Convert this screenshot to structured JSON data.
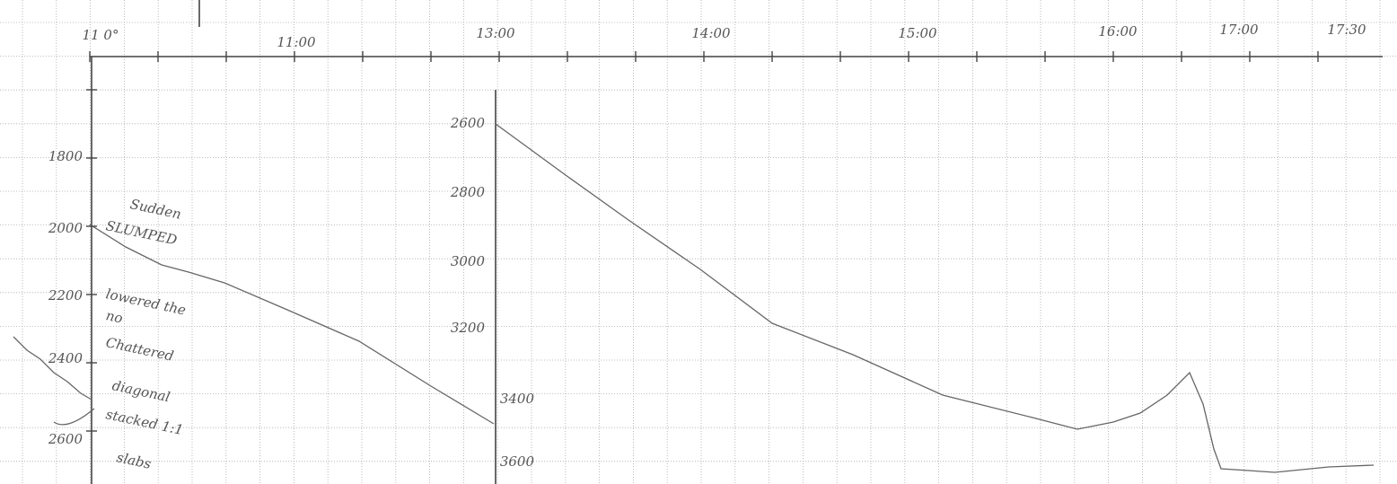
{
  "top_axis": {
    "labels": [
      "11 0°",
      "11:00",
      "13:00",
      "14:00",
      "15:00",
      "16:00",
      "17:00",
      "17:30"
    ]
  },
  "left_axis": {
    "labels": [
      "1800",
      "2000",
      "2200",
      "2400",
      "2600"
    ]
  },
  "middle_axis": {
    "labels": [
      "2600",
      "2800",
      "3000",
      "3200",
      "3400",
      "3600"
    ]
  },
  "annotations": [
    "Sudden",
    "SLUMPED",
    "lowered the",
    "no",
    "Chattered",
    "diagonal",
    "stacked 1:1",
    "slabs"
  ]
}
